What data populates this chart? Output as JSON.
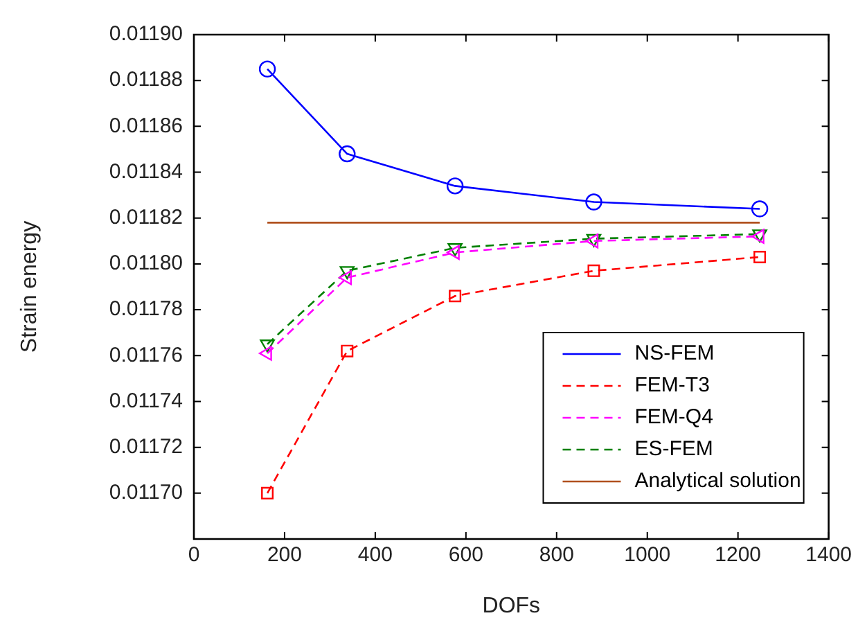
{
  "chart_data": {
    "type": "line",
    "xlabel": "DOFs",
    "ylabel": "Strain energy",
    "x": [
      162,
      338,
      576,
      882,
      1248
    ],
    "xlim": [
      0,
      1400
    ],
    "xticks": [
      0,
      200,
      400,
      600,
      800,
      1000,
      1200,
      1400
    ],
    "ylim": [
      0.01168,
      0.0119
    ],
    "yticks": [
      {
        "value": 0.0117,
        "label": "0.01170"
      },
      {
        "value": 0.01172,
        "label": "0.01172"
      },
      {
        "value": 0.01174,
        "label": "0.01174"
      },
      {
        "value": 0.01176,
        "label": "0.01176"
      },
      {
        "value": 0.01178,
        "label": "0.01178"
      },
      {
        "value": 0.0118,
        "label": "0.01180"
      },
      {
        "value": 0.01182,
        "label": "0.01182"
      },
      {
        "value": 0.01184,
        "label": "0.01184"
      },
      {
        "value": 0.01186,
        "label": "0.01186"
      },
      {
        "value": 0.01188,
        "label": "0.01188"
      },
      {
        "value": 0.0119,
        "label": "0.01190"
      }
    ],
    "grid": false,
    "legend": "bottom right",
    "series": [
      {
        "name": "NS-FEM",
        "color": "#0000ff",
        "marker": "circle",
        "line_style": "solid",
        "values": [
          0.011885,
          0.011848,
          0.011834,
          0.011827,
          0.011824
        ]
      },
      {
        "name": "FEM-T3",
        "color": "#ff0000",
        "marker": "square",
        "line_style": "dashed",
        "values": [
          0.0117,
          0.011762,
          0.011786,
          0.011797,
          0.011803
        ]
      },
      {
        "name": "FEM-Q4",
        "color": "#ff00ff",
        "marker": "triangle",
        "line_style": "dashed",
        "values": [
          0.011761,
          0.011794,
          0.011805,
          0.01181,
          0.011812
        ]
      },
      {
        "name": "ES-FEM",
        "color": "#008000",
        "marker": "triangle",
        "line_style": "dashed",
        "values": [
          0.011765,
          0.011797,
          0.011807,
          0.011811,
          0.011813
        ]
      },
      {
        "name": "Analytical solution",
        "color": "#b0501e",
        "marker": "none",
        "line_style": "solid",
        "x": [
          162,
          1248
        ],
        "values": [
          0.011818,
          0.011818
        ]
      }
    ]
  }
}
